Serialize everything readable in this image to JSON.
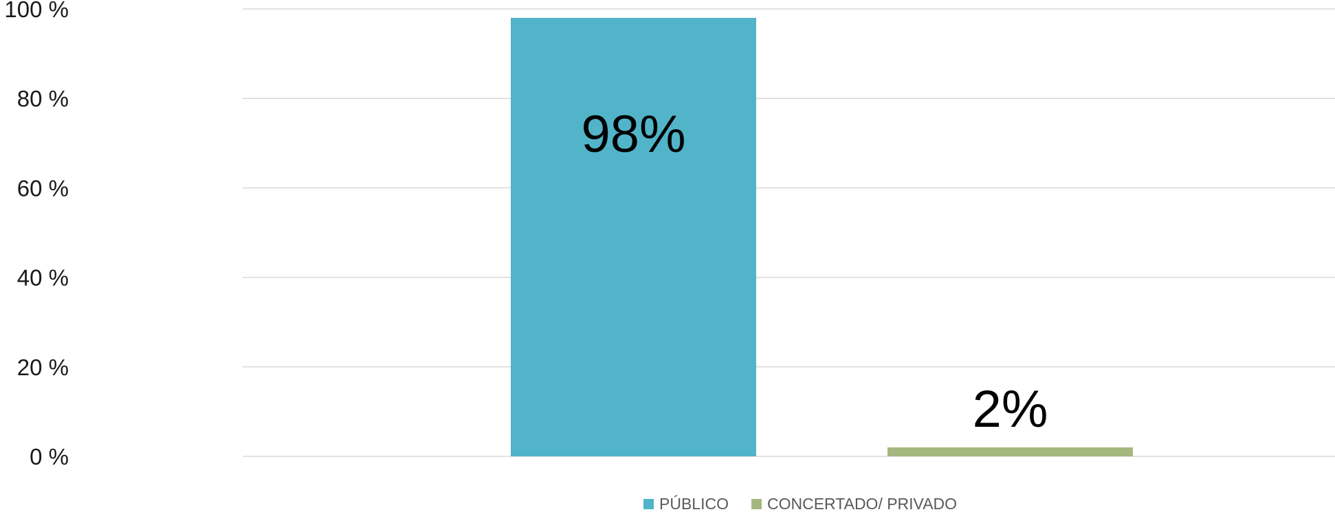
{
  "chart_data": {
    "type": "bar",
    "categories": [
      "PÚBLICO",
      "CONCERTADO/ PRIVADO"
    ],
    "series": [
      {
        "name": "PÚBLICO",
        "values": [
          98,
          null
        ],
        "color": "#51B4C9"
      },
      {
        "name": "CONCERTADO/ PRIVADO",
        "values": [
          null,
          2
        ],
        "color": "#A5B77F"
      }
    ],
    "data_labels": [
      "98%",
      "2%"
    ],
    "y_ticks": [
      0,
      20,
      40,
      60,
      80,
      100
    ],
    "y_tick_labels": [
      "0  %",
      "20 %",
      "40 %",
      "60 %",
      "80 %",
      "100 %"
    ],
    "ylim": [
      0,
      100
    ],
    "title": "",
    "xlabel": "",
    "ylabel": "",
    "grid": true,
    "legend_position": "bottom",
    "legend": [
      {
        "label": "PÚBLICO",
        "color": "#51B4C9"
      },
      {
        "label": "CONCERTADO/ PRIVADO",
        "color": "#A5B77F"
      }
    ]
  }
}
